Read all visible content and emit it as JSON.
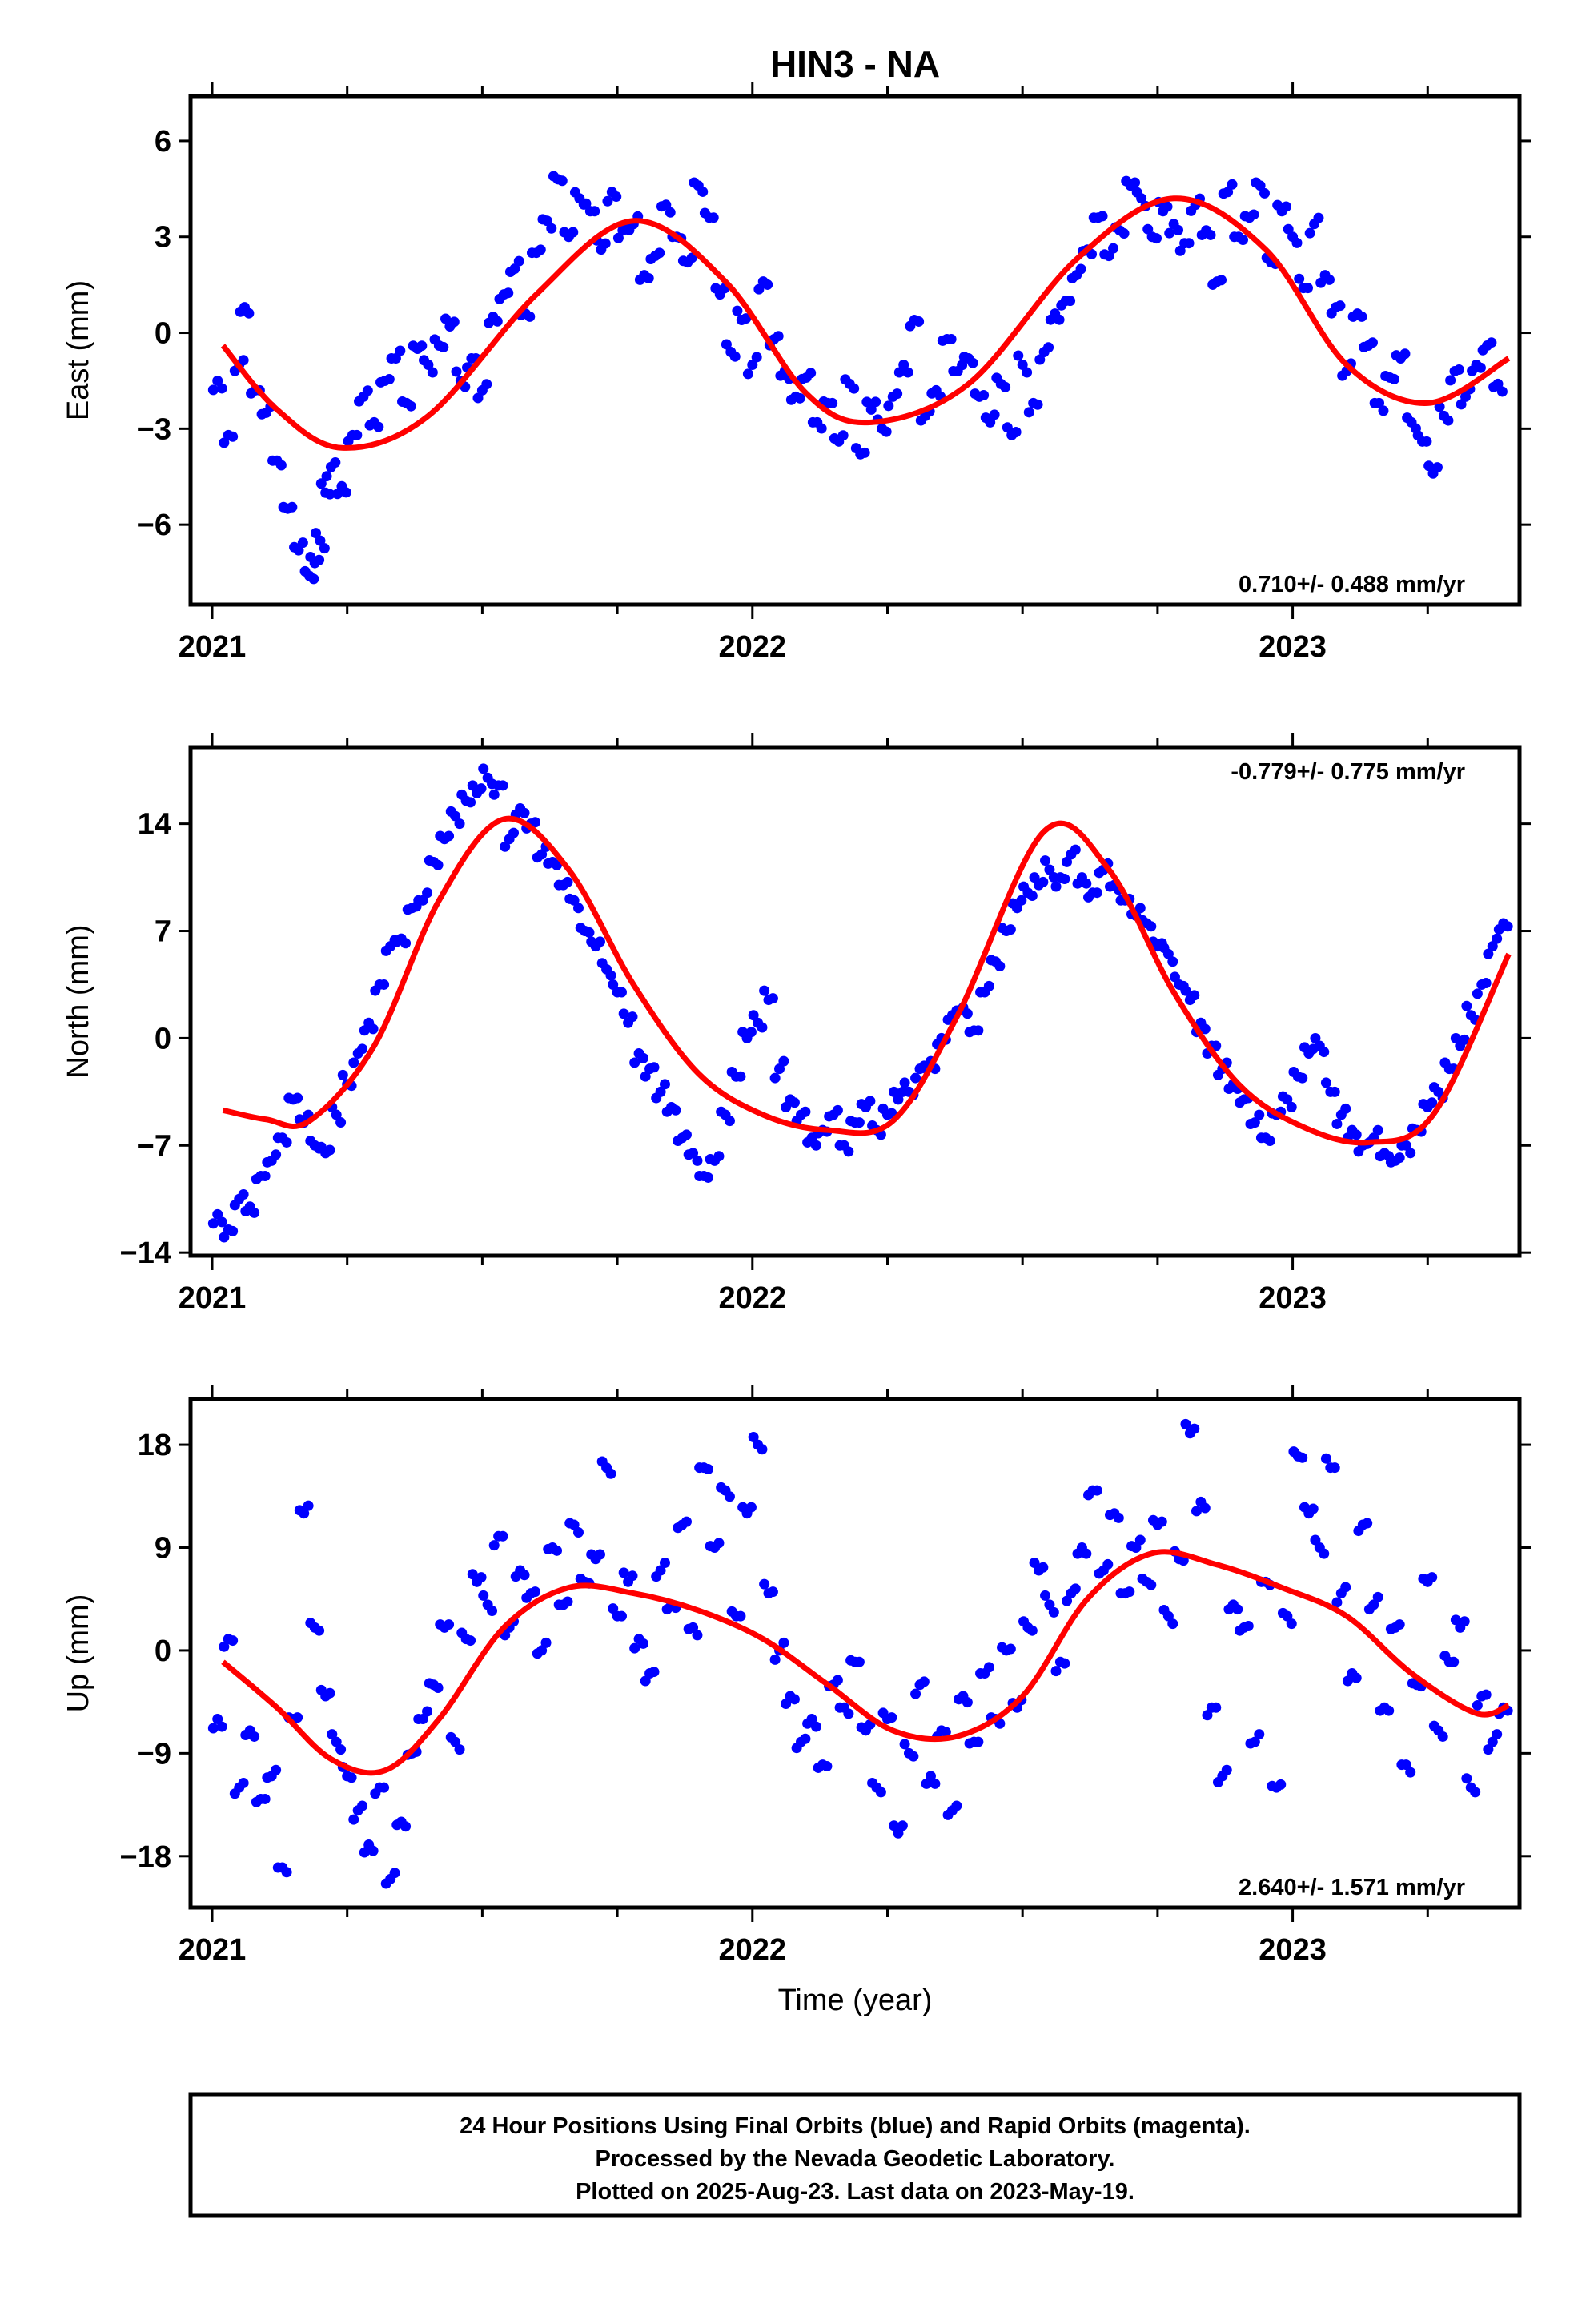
{
  "title": "HIN3 - NA",
  "xlabel": "Time (year)",
  "colors": {
    "final": "#0000ff",
    "fit": "#ff0000",
    "axis": "#000000"
  },
  "chart_data": [
    {
      "type": "scatter",
      "component": "east",
      "ylabel": "East (mm)",
      "ylim": [
        -8.5,
        7.4
      ],
      "yticks": [
        6,
        3,
        0,
        -3,
        -6
      ],
      "ytick_labels": [
        "6",
        "3",
        "0",
        "−3",
        "−6"
      ],
      "xlim": [
        2020.96,
        2023.42
      ],
      "xticks": [
        2021,
        2022,
        2023
      ],
      "xtick_labels": [
        "2021",
        "2022",
        "2023"
      ],
      "rate_label": "0.710+/- 0.488 mm/yr",
      "rate_position": "bottom-right",
      "fit": {
        "offset": 0.3,
        "trend": 0.71,
        "a1": -3.2,
        "p1": 0.96,
        "a2": 0.55,
        "p2": 0.4
      },
      "fit_x": [
        2021.02,
        2021.12,
        2021.24,
        2021.4,
        2021.6,
        2021.78,
        2021.95,
        2022.1,
        2022.22,
        2022.4,
        2022.6,
        2022.78,
        2022.95,
        2023.1,
        2023.25,
        2023.4
      ],
      "fit_y": [
        -0.4,
        -2.4,
        -3.6,
        -2.6,
        1.2,
        3.5,
        1.6,
        -1.9,
        -2.8,
        -1.6,
        2.3,
        4.2,
        2.6,
        -1.0,
        -2.2,
        -0.8
      ],
      "series": [
        {
          "x": [
            2021.01,
            2021.03,
            2021.05,
            2021.06,
            2021.08,
            2021.1,
            2021.12,
            2021.14,
            2021.16,
            2021.18,
            2021.19,
            2021.2,
            2021.21,
            2021.22,
            2021.24,
            2021.26,
            2021.28,
            2021.3,
            2021.32,
            2021.34,
            2021.36,
            2021.38,
            2021.4,
            2021.42,
            2021.44,
            2021.46,
            2021.48,
            2021.5,
            2021.52,
            2021.54,
            2021.56,
            2021.58,
            2021.6,
            2021.62,
            2021.64,
            2021.66,
            2021.68,
            2021.7,
            2021.72,
            2021.74,
            2021.76,
            2021.78,
            2021.8,
            2021.82,
            2021.84,
            2021.86,
            2021.88,
            2021.9,
            2021.92,
            2021.94,
            2021.96,
            2021.98,
            2022.0,
            2022.02,
            2022.04,
            2022.06,
            2022.08,
            2022.1,
            2022.12,
            2022.14,
            2022.16,
            2022.18,
            2022.2,
            2022.22,
            2022.24,
            2022.26,
            2022.28,
            2022.3,
            2022.32,
            2022.34,
            2022.36,
            2022.38,
            2022.4,
            2022.42,
            2022.44,
            2022.46,
            2022.48,
            2022.5,
            2022.52,
            2022.54,
            2022.56,
            2022.58,
            2022.6,
            2022.62,
            2022.64,
            2022.66,
            2022.68,
            2022.7,
            2022.72,
            2022.74,
            2022.76,
            2022.78,
            2022.8,
            2022.82,
            2022.84,
            2022.86,
            2022.88,
            2022.9,
            2022.92,
            2022.94,
            2022.96,
            2022.98,
            2023.0,
            2023.02,
            2023.04,
            2023.06,
            2023.08,
            2023.1,
            2023.12,
            2023.14,
            2023.16,
            2023.18,
            2023.2,
            2023.22,
            2023.24,
            2023.26,
            2023.28,
            2023.3,
            2023.32,
            2023.34,
            2023.36,
            2023.38
          ],
          "y": [
            -1.5,
            -3.2,
            -1.0,
            0.8,
            -1.8,
            -2.5,
            -4.0,
            -5.5,
            -6.8,
            -7.6,
            -7.2,
            -6.5,
            -5.0,
            -4.2,
            -4.8,
            -3.2,
            -2.0,
            -2.8,
            -1.5,
            -0.8,
            -2.2,
            -0.5,
            -1.0,
            -0.4,
            0.2,
            -1.5,
            -0.8,
            -1.8,
            0.5,
            1.2,
            2.0,
            0.6,
            2.5,
            3.5,
            4.8,
            3.0,
            4.2,
            3.8,
            2.6,
            4.4,
            3.2,
            3.4,
            1.8,
            2.4,
            4.0,
            3.0,
            2.2,
            4.6,
            3.6,
            1.2,
            -0.6,
            0.4,
            -1.0,
            1.6,
            -0.2,
            -1.2,
            -2.0,
            -1.4,
            -2.8,
            -2.2,
            -3.4,
            -1.6,
            -3.8,
            -2.4,
            -3.0,
            -2.0,
            -1.0,
            0.4,
            -2.6,
            -1.8,
            -0.2,
            -1.2,
            -0.8,
            -2.0,
            -2.8,
            -1.6,
            -3.2,
            -1.0,
            -2.2,
            -0.6,
            0.6,
            1.0,
            1.8,
            2.6,
            3.6,
            2.4,
            3.2,
            4.6,
            4.2,
            3.0,
            3.8,
            3.4,
            2.8,
            4.0,
            3.2,
            1.6,
            4.4,
            3.0,
            3.6,
            4.6,
            2.2,
            3.8,
            3.0,
            1.4,
            3.4,
            1.8,
            0.8,
            -1.2,
            0.6,
            -0.4,
            -2.2,
            -1.4,
            -0.8,
            -2.8,
            -3.4,
            -4.4,
            -2.6,
            -1.2,
            -2.0,
            -1.0,
            -0.4,
            -1.6
          ]
        }
      ]
    },
    {
      "type": "scatter",
      "component": "north",
      "ylabel": "North (mm)",
      "ylim": [
        -14.2,
        19.0
      ],
      "yticks": [
        14,
        7,
        0,
        -7,
        -14
      ],
      "ytick_labels": [
        "14",
        "7",
        "0",
        "−7",
        "−14"
      ],
      "xlim": [
        2020.96,
        2023.42
      ],
      "xticks": [
        2021,
        2022,
        2023
      ],
      "xtick_labels": [
        "2021",
        "2022",
        "2023"
      ],
      "rate_label": "-0.779+/- 0.775 mm/yr",
      "rate_position": "top-right",
      "fit": {
        "offset": 2.5,
        "trend": -0.779,
        "a1": 10.0,
        "p1": 0.28,
        "a2": 0.0,
        "p2": 0.0
      },
      "fit_x": [
        2021.02,
        2021.1,
        2021.18,
        2021.3,
        2021.42,
        2021.54,
        2021.66,
        2021.78,
        2021.9,
        2022.02,
        2022.14,
        2022.26,
        2022.38,
        2022.54,
        2022.66,
        2022.78,
        2022.9,
        2023.02,
        2023.14,
        2023.26,
        2023.4
      ],
      "fit_y": [
        -4.7,
        -5.3,
        -5.4,
        -0.5,
        9.0,
        14.3,
        11.0,
        3.5,
        -2.3,
        -5.0,
        -6.0,
        -5.4,
        1.5,
        13.5,
        11.0,
        3.0,
        -3.0,
        -5.8,
        -6.8,
        -5.0,
        5.5
      ],
      "series": [
        {
          "x": [
            2021.01,
            2021.03,
            2021.05,
            2021.07,
            2021.09,
            2021.11,
            2021.13,
            2021.15,
            2021.17,
            2021.19,
            2021.21,
            2021.23,
            2021.25,
            2021.27,
            2021.29,
            2021.31,
            2021.33,
            2021.35,
            2021.37,
            2021.39,
            2021.41,
            2021.43,
            2021.45,
            2021.47,
            2021.49,
            2021.51,
            2021.53,
            2021.55,
            2021.57,
            2021.59,
            2021.61,
            2021.63,
            2021.65,
            2021.67,
            2021.69,
            2021.71,
            2021.73,
            2021.75,
            2021.77,
            2021.79,
            2021.81,
            2021.83,
            2021.85,
            2021.87,
            2021.89,
            2021.91,
            2021.93,
            2021.95,
            2021.97,
            2021.99,
            2022.01,
            2022.03,
            2022.05,
            2022.07,
            2022.09,
            2022.11,
            2022.13,
            2022.15,
            2022.17,
            2022.19,
            2022.21,
            2022.23,
            2022.25,
            2022.27,
            2022.29,
            2022.31,
            2022.33,
            2022.35,
            2022.37,
            2022.39,
            2022.41,
            2022.43,
            2022.45,
            2022.47,
            2022.49,
            2022.51,
            2022.53,
            2022.55,
            2022.57,
            2022.59,
            2022.61,
            2022.63,
            2022.65,
            2022.67,
            2022.69,
            2022.71,
            2022.73,
            2022.75,
            2022.77,
            2022.79,
            2022.81,
            2022.83,
            2022.85,
            2022.87,
            2022.89,
            2022.91,
            2022.93,
            2022.95,
            2022.97,
            2022.99,
            2023.01,
            2023.03,
            2023.05,
            2023.07,
            2023.09,
            2023.11,
            2023.13,
            2023.15,
            2023.17,
            2023.19,
            2023.21,
            2023.23,
            2023.25,
            2023.27,
            2023.29,
            2023.31,
            2023.33,
            2023.35,
            2023.37,
            2023.39
          ],
          "y": [
            -11.5,
            -12.5,
            -10.5,
            -11.0,
            -9.0,
            -8.0,
            -6.5,
            -4.0,
            -5.5,
            -7.0,
            -7.5,
            -5.0,
            -3.0,
            -1.0,
            1.0,
            3.5,
            6.0,
            6.5,
            8.5,
            9.0,
            11.5,
            13.0,
            14.5,
            15.5,
            16.0,
            17.0,
            16.5,
            13.0,
            15.0,
            14.0,
            12.0,
            11.5,
            10.0,
            9.0,
            7.0,
            6.0,
            4.5,
            3.0,
            1.0,
            -1.0,
            -2.0,
            -3.5,
            -4.5,
            -6.5,
            -7.5,
            -9.0,
            -8.0,
            -5.0,
            -2.5,
            0.0,
            1.0,
            2.5,
            -2.0,
            -4.0,
            -5.0,
            -6.5,
            -6.0,
            -5.0,
            -7.0,
            -5.5,
            -4.5,
            -6.0,
            -5.0,
            -4.0,
            -3.5,
            -2.0,
            -1.5,
            0.0,
            1.5,
            2.0,
            0.5,
            3.0,
            5.0,
            7.0,
            8.5,
            9.5,
            10.0,
            11.0,
            10.5,
            12.0,
            10.5,
            9.5,
            11.0,
            10.0,
            9.0,
            8.0,
            7.5,
            6.0,
            5.5,
            3.5,
            2.5,
            1.0,
            -0.5,
            -2.0,
            -3.0,
            -4.0,
            -5.5,
            -6.5,
            -5.0,
            -4.0,
            -2.5,
            -1.0,
            -0.5,
            -3.5,
            -5.0,
            -6.0,
            -7.0,
            -6.5,
            -7.5,
            -8.0,
            -7.0,
            -6.0,
            -4.5,
            -3.5,
            -2.0,
            -0.5,
            1.5,
            3.5,
            6.0,
            7.5
          ]
        }
      ]
    },
    {
      "type": "scatter",
      "component": "up",
      "ylabel": "Up (mm)",
      "ylim": [
        -22.5,
        22.0
      ],
      "yticks": [
        18,
        9,
        0,
        -9,
        -18
      ],
      "ytick_labels": [
        "18",
        "9",
        "0",
        "−9",
        "−18"
      ],
      "xlim": [
        2020.96,
        2023.42
      ],
      "xticks": [
        2021,
        2022,
        2023
      ],
      "xtick_labels": [
        "2021",
        "2022",
        "2023"
      ],
      "rate_label": "2.640+/- 1.571 mm/yr",
      "rate_position": "bottom-right",
      "fit": {
        "offset": -1.0,
        "trend": 2.64,
        "a1": 7.5,
        "p1": 0.55,
        "a2": 0.0,
        "p2": 0.0
      },
      "fit_x": [
        2021.02,
        2021.12,
        2021.22,
        2021.32,
        2021.42,
        2021.54,
        2021.66,
        2021.78,
        2021.9,
        2022.02,
        2022.14,
        2022.26,
        2022.38,
        2022.5,
        2022.62,
        2022.74,
        2022.86,
        2022.98,
        2023.1,
        2023.22,
        2023.34,
        2023.4
      ],
      "fit_y": [
        -1.0,
        -5.0,
        -9.5,
        -10.5,
        -6.0,
        2.0,
        5.5,
        5.0,
        3.5,
        1.0,
        -3.0,
        -7.0,
        -7.5,
        -4.0,
        4.5,
        8.5,
        7.5,
        5.5,
        3.0,
        -2.0,
        -5.5,
        -4.8
      ],
      "series": [
        {
          "x": [
            2021.01,
            2021.03,
            2021.05,
            2021.07,
            2021.09,
            2021.11,
            2021.13,
            2021.15,
            2021.17,
            2021.19,
            2021.21,
            2021.23,
            2021.25,
            2021.27,
            2021.29,
            2021.31,
            2021.33,
            2021.35,
            2021.37,
            2021.39,
            2021.41,
            2021.43,
            2021.45,
            2021.47,
            2021.49,
            2021.51,
            2021.53,
            2021.55,
            2021.57,
            2021.59,
            2021.61,
            2021.63,
            2021.65,
            2021.67,
            2021.69,
            2021.71,
            2021.73,
            2021.75,
            2021.77,
            2021.79,
            2021.81,
            2021.83,
            2021.85,
            2021.87,
            2021.89,
            2021.91,
            2021.93,
            2021.95,
            2021.97,
            2021.99,
            2022.01,
            2022.03,
            2022.05,
            2022.07,
            2022.09,
            2022.11,
            2022.13,
            2022.15,
            2022.17,
            2022.19,
            2022.21,
            2022.23,
            2022.25,
            2022.27,
            2022.29,
            2022.31,
            2022.33,
            2022.35,
            2022.37,
            2022.39,
            2022.41,
            2022.43,
            2022.45,
            2022.47,
            2022.49,
            2022.51,
            2022.53,
            2022.55,
            2022.57,
            2022.59,
            2022.61,
            2022.63,
            2022.65,
            2022.67,
            2022.69,
            2022.71,
            2022.73,
            2022.75,
            2022.77,
            2022.79,
            2022.81,
            2022.83,
            2022.85,
            2022.87,
            2022.89,
            2022.91,
            2022.93,
            2022.95,
            2022.97,
            2022.99,
            2023.01,
            2023.03,
            2023.05,
            2023.07,
            2023.09,
            2023.11,
            2023.13,
            2023.15,
            2023.17,
            2023.19,
            2023.21,
            2023.23,
            2023.25,
            2023.27,
            2023.29,
            2023.31,
            2023.33,
            2023.35,
            2023.37,
            2023.39
          ],
          "y": [
            -6.0,
            1.0,
            -12.0,
            -7.0,
            -13.0,
            -11.0,
            -19.0,
            -6.0,
            12.0,
            2.0,
            -4.0,
            -8.0,
            -11.0,
            -14.0,
            -17.0,
            -12.0,
            -20.0,
            -15.0,
            -9.0,
            -6.0,
            -3.0,
            2.0,
            -8.0,
            1.0,
            6.0,
            4.0,
            10.0,
            2.0,
            7.0,
            5.0,
            0.0,
            9.0,
            4.0,
            11.0,
            6.0,
            8.0,
            16.0,
            3.0,
            6.0,
            1.0,
            -2.0,
            7.0,
            4.0,
            11.0,
            2.0,
            16.0,
            9.0,
            14.0,
            3.0,
            12.0,
            18.0,
            5.0,
            0.0,
            -4.0,
            -8.0,
            -6.0,
            -10.0,
            -3.0,
            -5.0,
            -1.0,
            -7.0,
            -12.0,
            -6.0,
            -16.0,
            -9.0,
            -3.0,
            -11.0,
            -7.0,
            -14.0,
            -4.0,
            -8.0,
            -2.0,
            -6.0,
            0.0,
            -5.0,
            2.0,
            7.0,
            4.0,
            -1.0,
            5.0,
            9.0,
            14.0,
            7.0,
            12.0,
            5.0,
            9.0,
            6.0,
            11.0,
            3.0,
            8.0,
            19.0,
            13.0,
            -5.0,
            -11.0,
            4.0,
            2.0,
            -8.0,
            6.0,
            -12.0,
            3.0,
            17.0,
            12.0,
            9.0,
            16.0,
            5.0,
            -2.0,
            11.0,
            4.0,
            -5.0,
            2.0,
            -10.0,
            -3.0,
            6.0,
            -7.0,
            -1.0,
            2.0,
            -12.0,
            -4.0,
            -8.0,
            -5.0
          ]
        }
      ]
    }
  ],
  "footer": {
    "line1": "24 Hour Positions Using Final Orbits (blue) and Rapid Orbits (magenta).",
    "line2": "Processed by the Nevada Geodetic Laboratory.",
    "line3": "Plotted on 2025-Aug-23. Last data on 2023-May-19."
  }
}
